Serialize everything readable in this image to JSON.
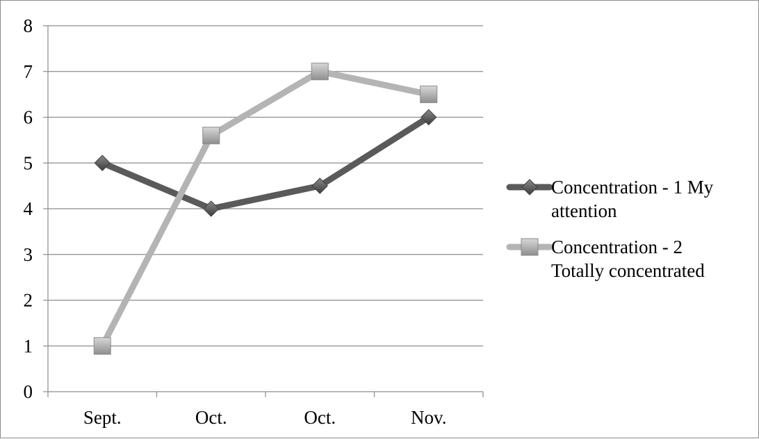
{
  "chart_data": {
    "type": "line",
    "title": "",
    "xlabel": "",
    "ylabel": "",
    "categories": [
      "Sept.",
      "Oct.",
      "Oct.",
      "Nov."
    ],
    "ylim": [
      0,
      8
    ],
    "yticks": [
      "0",
      "1",
      "2",
      "3",
      "4",
      "5",
      "6",
      "7",
      "8"
    ],
    "grid": "horizontal",
    "legend_position": "right",
    "series": [
      {
        "name_lines": [
          "Concentration - 1 My",
          "attention"
        ],
        "values": [
          5,
          4,
          4.5,
          6
        ],
        "color": "#5a5a5a",
        "marker": "diamond"
      },
      {
        "name_lines": [
          "Concentration - 2",
          "Totally concentrated"
        ],
        "values": [
          1,
          5.6,
          7,
          6.5
        ],
        "color": "#b4b4b4",
        "marker": "square"
      }
    ]
  }
}
